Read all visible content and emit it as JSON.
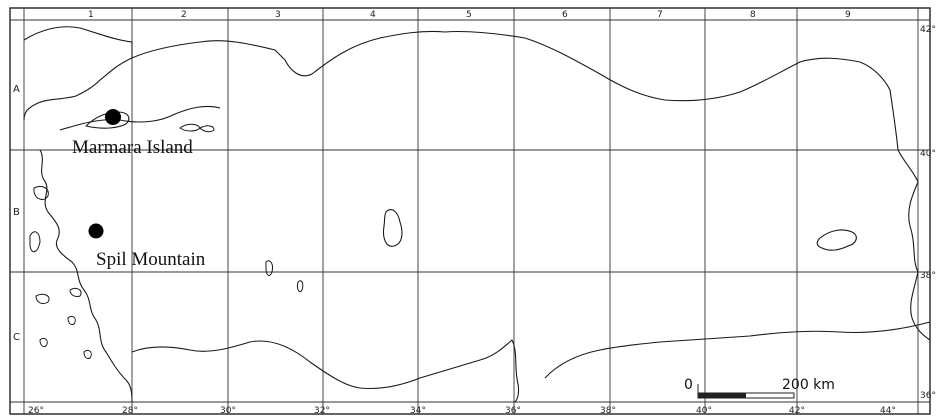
{
  "columns": [
    "1",
    "2",
    "3",
    "4",
    "5",
    "6",
    "7",
    "8",
    "9"
  ],
  "rows": [
    "A",
    "B",
    "C"
  ],
  "lon_ticks": [
    "26°",
    "28°",
    "30°",
    "32°",
    "34°",
    "36°",
    "38°",
    "40°",
    "42°",
    "44°"
  ],
  "lat_ticks": [
    "42°",
    "40°",
    "38°",
    "36°"
  ],
  "sites": [
    {
      "name": "Marmara Island"
    },
    {
      "name": "Spil Mountain"
    }
  ],
  "scale": {
    "start": "0",
    "end": "200 km"
  }
}
